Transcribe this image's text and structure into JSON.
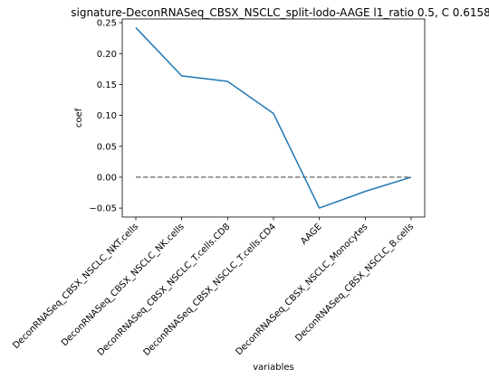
{
  "chart_data": {
    "type": "line",
    "title": "signature-DeconRNASeq_CBSX_NSCLC_split-lodo-AAGE l1_ratio 0.5, C 0.6158",
    "xlabel": "variables",
    "ylabel": "coef",
    "categories": [
      "DeconRNASeq_CBSX_NSCLC_NKT.cells",
      "DeconRNASeq_CBSX_NSCLC_NK.cells",
      "DeconRNASeq_CBSX_NSCLC_T.cells.CD8",
      "DeconRNASeq_CBSX_NSCLC_T.cells.CD4",
      "AAGE",
      "DeconRNASeq_CBSX_NSCLC_Monocytes",
      "DeconRNASeq_CBSX_NSCLC_B.cells"
    ],
    "series": [
      {
        "values": [
          0.242,
          0.164,
          0.155,
          0.103,
          -0.05,
          -0.023,
          0.0
        ],
        "color": "#1f77b4"
      }
    ],
    "reference_line": {
      "y": 0,
      "style": "dashed",
      "color": "#808080"
    },
    "yticks": [
      -0.05,
      0.0,
      0.05,
      0.1,
      0.15,
      0.2,
      0.25
    ],
    "ytick_labels": [
      "−0.05",
      "0.00",
      "0.05",
      "0.10",
      "0.15",
      "0.20",
      "0.25"
    ],
    "ylim": [
      -0.0645,
      0.256
    ],
    "grid": false,
    "legend": "none"
  }
}
